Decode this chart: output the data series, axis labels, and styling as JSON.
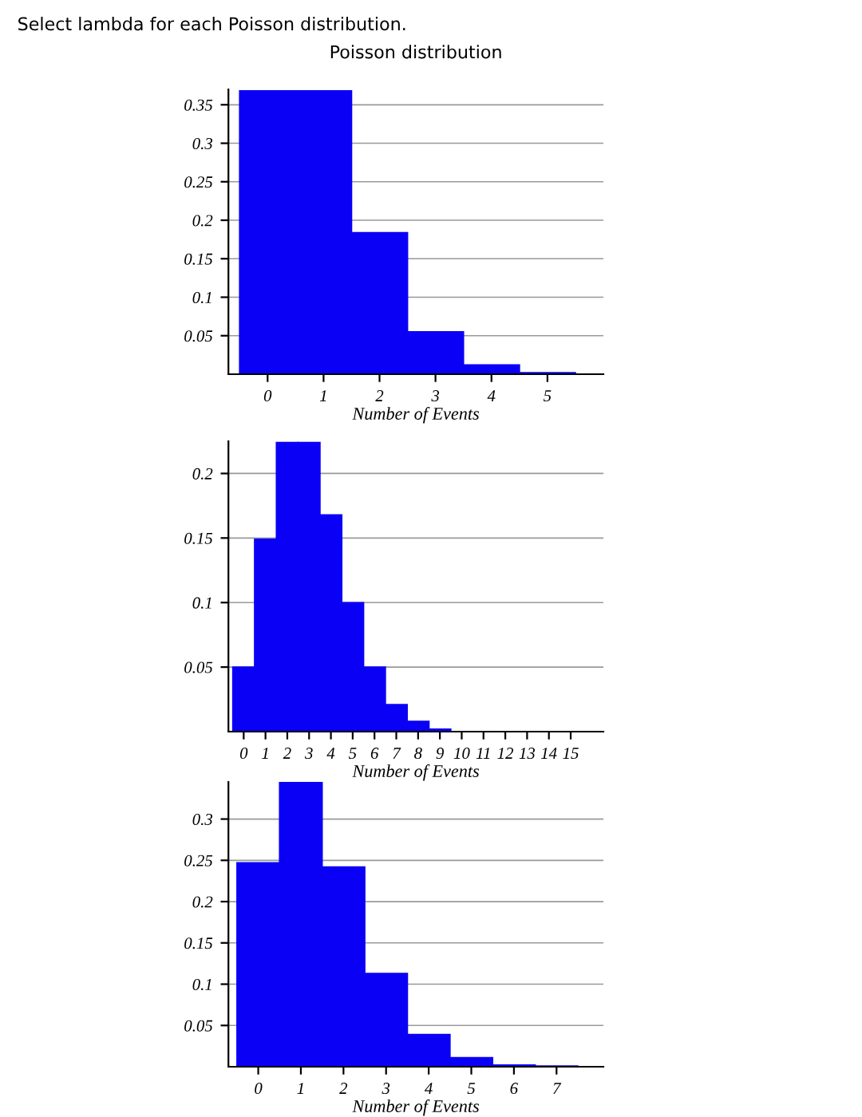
{
  "chart_data": [
    {
      "type": "bar",
      "title": "Poisson distribution",
      "annotations": [
        "Select lambda for each Poisson distribution."
      ],
      "xlabel": "Number of Events",
      "categories": [
        "0",
        "1",
        "2",
        "3",
        "4",
        "5"
      ],
      "values": [
        0.368,
        0.368,
        0.184,
        0.055,
        0.012,
        0.002
      ],
      "color": "#0a00f5",
      "ylim": [
        0,
        0.37
      ],
      "yticks": [
        0.05,
        0.1,
        0.15,
        0.2,
        0.25,
        0.3,
        0.35
      ],
      "grid": "y"
    },
    {
      "type": "bar",
      "xlabel": "Number of Events",
      "categories": [
        "0",
        "1",
        "2",
        "3",
        "4",
        "5",
        "6",
        "7",
        "8",
        "9",
        "10",
        "11",
        "12",
        "13",
        "14",
        "15"
      ],
      "values": [
        0.05,
        0.149,
        0.224,
        0.224,
        0.168,
        0.1,
        0.05,
        0.021,
        0.008,
        0.002,
        null,
        0,
        0,
        0,
        0,
        0
      ],
      "color": "#0a00f5",
      "ylim": [
        0,
        0.225
      ],
      "yticks": [
        0.05,
        0.1,
        0.15,
        0.2
      ],
      "grid": "y"
    },
    {
      "type": "bar",
      "xlabel": "Number of Events",
      "categories": [
        "0",
        "1",
        "2",
        "3",
        "4",
        "5",
        "6",
        "7"
      ],
      "values": [
        0.247,
        0.345,
        0.242,
        0.113,
        0.039,
        0.011,
        0.002,
        0.001
      ],
      "color": "#0a00f5",
      "ylim": [
        0,
        0.345
      ],
      "yticks": [
        0.05,
        0.1,
        0.15,
        0.2,
        0.25,
        0.3
      ],
      "grid": "y"
    }
  ]
}
